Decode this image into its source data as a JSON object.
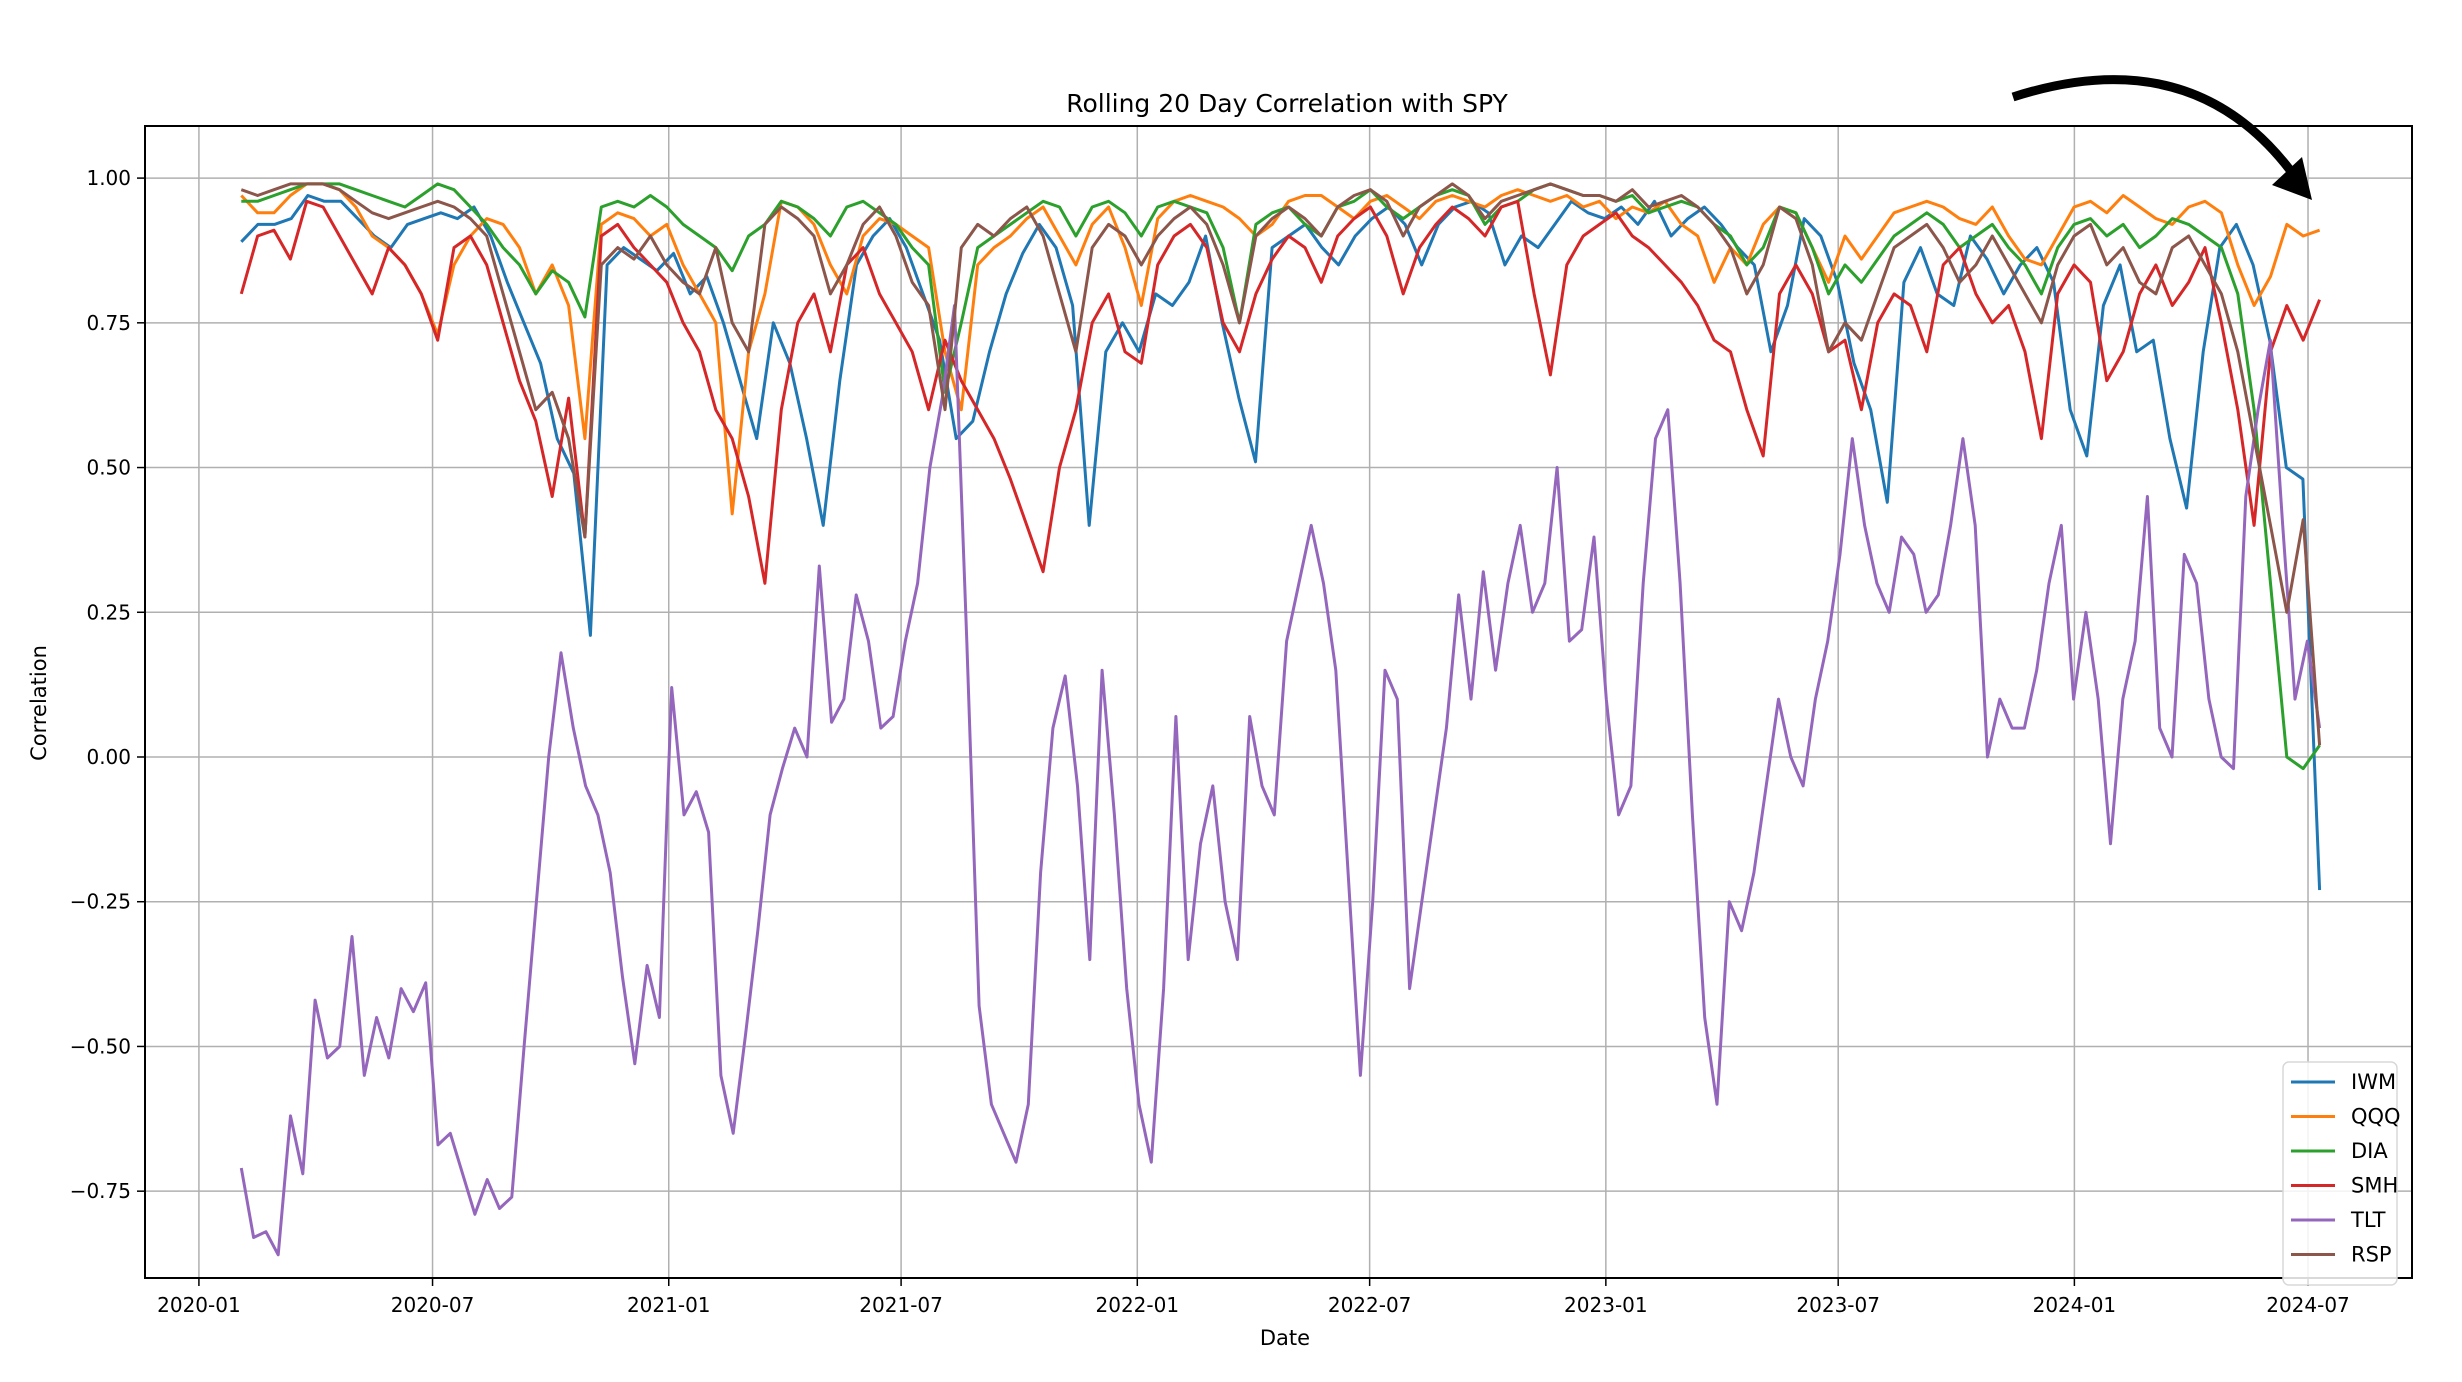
{
  "chart_data": {
    "type": "line",
    "title": "Rolling 20 Day Correlation with SPY",
    "xlabel": "Date",
    "ylabel": "Correlation",
    "xlim": [
      "2019-11-20",
      "2024-09-20"
    ],
    "ylim": [
      -0.9,
      1.09
    ],
    "grid": true,
    "legend_position": "lower-right",
    "x_ticks": [
      "2020-01",
      "2020-07",
      "2021-01",
      "2021-07",
      "2022-01",
      "2022-07",
      "2023-01",
      "2023-07",
      "2024-01",
      "2024-07"
    ],
    "y_ticks": [
      1.0,
      0.75,
      0.5,
      0.25,
      0.0,
      -0.25,
      -0.5,
      -0.75
    ],
    "y_tick_labels": [
      "1.00",
      "0.75",
      "0.50",
      "0.25",
      "0.00",
      "−0.25",
      "−0.50",
      "−0.75"
    ],
    "x_start": "2020-02-03",
    "x_end": "2024-07-10",
    "sampling": "uniform between x_start and x_end",
    "annotation": "curved arrow pointing to latest values",
    "series": [
      {
        "name": "IWM",
        "color": "#1f77b4",
        "values": [
          0.89,
          0.92,
          0.92,
          0.93,
          0.97,
          0.96,
          0.96,
          0.93,
          0.9,
          0.88,
          0.92,
          0.93,
          0.94,
          0.93,
          0.95,
          0.9,
          0.82,
          0.75,
          0.68,
          0.55,
          0.49,
          0.21,
          0.85,
          0.88,
          0.86,
          0.84,
          0.87,
          0.8,
          0.83,
          0.75,
          0.65,
          0.55,
          0.75,
          0.68,
          0.55,
          0.4,
          0.65,
          0.85,
          0.9,
          0.93,
          0.88,
          0.8,
          0.72,
          0.55,
          0.58,
          0.7,
          0.8,
          0.87,
          0.92,
          0.88,
          0.78,
          0.4,
          0.7,
          0.75,
          0.7,
          0.8,
          0.78,
          0.82,
          0.9,
          0.75,
          0.62,
          0.51,
          0.88,
          0.9,
          0.92,
          0.88,
          0.85,
          0.9,
          0.93,
          0.95,
          0.92,
          0.85,
          0.92,
          0.95,
          0.96,
          0.94,
          0.85,
          0.9,
          0.88,
          0.92,
          0.96,
          0.94,
          0.93,
          0.95,
          0.92,
          0.96,
          0.9,
          0.93,
          0.95,
          0.92,
          0.88,
          0.85,
          0.7,
          0.78,
          0.93,
          0.9,
          0.82,
          0.68,
          0.6,
          0.44,
          0.82,
          0.88,
          0.8,
          0.78,
          0.9,
          0.86,
          0.8,
          0.85,
          0.88,
          0.82,
          0.6,
          0.52,
          0.78,
          0.85,
          0.7,
          0.72,
          0.55,
          0.43,
          0.7,
          0.88,
          0.92,
          0.85,
          0.72,
          0.5,
          0.48,
          -0.23
        ]
      },
      {
        "name": "QQQ",
        "color": "#ff7f0e",
        "values": [
          0.97,
          0.94,
          0.94,
          0.97,
          0.99,
          0.99,
          0.98,
          0.95,
          0.9,
          0.88,
          0.85,
          0.8,
          0.73,
          0.85,
          0.9,
          0.93,
          0.92,
          0.88,
          0.8,
          0.85,
          0.78,
          0.55,
          0.92,
          0.94,
          0.93,
          0.9,
          0.92,
          0.85,
          0.8,
          0.75,
          0.42,
          0.7,
          0.8,
          0.96,
          0.95,
          0.92,
          0.85,
          0.8,
          0.9,
          0.93,
          0.92,
          0.9,
          0.88,
          0.7,
          0.6,
          0.85,
          0.88,
          0.9,
          0.93,
          0.95,
          0.9,
          0.85,
          0.92,
          0.95,
          0.88,
          0.78,
          0.93,
          0.96,
          0.97,
          0.96,
          0.95,
          0.93,
          0.9,
          0.92,
          0.96,
          0.97,
          0.97,
          0.95,
          0.93,
          0.96,
          0.97,
          0.95,
          0.93,
          0.96,
          0.97,
          0.96,
          0.95,
          0.97,
          0.98,
          0.97,
          0.96,
          0.97,
          0.95,
          0.96,
          0.93,
          0.95,
          0.94,
          0.96,
          0.92,
          0.9,
          0.82,
          0.88,
          0.85,
          0.92,
          0.95,
          0.94,
          0.88,
          0.82,
          0.9,
          0.86,
          0.9,
          0.94,
          0.95,
          0.96,
          0.95,
          0.93,
          0.92,
          0.95,
          0.9,
          0.86,
          0.85,
          0.9,
          0.95,
          0.96,
          0.94,
          0.97,
          0.95,
          0.93,
          0.92,
          0.95,
          0.96,
          0.94,
          0.85,
          0.78,
          0.83,
          0.92,
          0.9,
          0.91
        ]
      },
      {
        "name": "DIA",
        "color": "#2ca02c",
        "values": [
          0.96,
          0.96,
          0.97,
          0.98,
          0.99,
          0.99,
          0.99,
          0.98,
          0.97,
          0.96,
          0.95,
          0.97,
          0.99,
          0.98,
          0.95,
          0.92,
          0.88,
          0.85,
          0.8,
          0.84,
          0.82,
          0.76,
          0.95,
          0.96,
          0.95,
          0.97,
          0.95,
          0.92,
          0.9,
          0.88,
          0.84,
          0.9,
          0.92,
          0.96,
          0.95,
          0.93,
          0.9,
          0.95,
          0.96,
          0.94,
          0.92,
          0.88,
          0.85,
          0.63,
          0.75,
          0.88,
          0.9,
          0.92,
          0.94,
          0.96,
          0.95,
          0.9,
          0.95,
          0.96,
          0.94,
          0.9,
          0.95,
          0.96,
          0.95,
          0.94,
          0.88,
          0.75,
          0.92,
          0.94,
          0.95,
          0.92,
          0.9,
          0.95,
          0.96,
          0.98,
          0.95,
          0.93,
          0.95,
          0.97,
          0.98,
          0.97,
          0.92,
          0.95,
          0.96,
          0.98,
          0.99,
          0.98,
          0.97,
          0.97,
          0.96,
          0.97,
          0.94,
          0.95,
          0.96,
          0.95,
          0.92,
          0.9,
          0.85,
          0.88,
          0.95,
          0.94,
          0.88,
          0.8,
          0.85,
          0.82,
          0.86,
          0.9,
          0.92,
          0.94,
          0.92,
          0.88,
          0.9,
          0.92,
          0.88,
          0.85,
          0.8,
          0.88,
          0.92,
          0.93,
          0.9,
          0.92,
          0.88,
          0.9,
          0.93,
          0.92,
          0.9,
          0.88,
          0.8,
          0.6,
          0.3,
          0.0,
          -0.02,
          0.02
        ]
      },
      {
        "name": "SMH",
        "color": "#d62728",
        "values": [
          0.8,
          0.9,
          0.91,
          0.86,
          0.96,
          0.95,
          0.9,
          0.85,
          0.8,
          0.88,
          0.85,
          0.8,
          0.72,
          0.88,
          0.9,
          0.85,
          0.75,
          0.65,
          0.58,
          0.45,
          0.62,
          0.38,
          0.9,
          0.92,
          0.88,
          0.85,
          0.82,
          0.75,
          0.7,
          0.6,
          0.55,
          0.45,
          0.3,
          0.6,
          0.75,
          0.8,
          0.7,
          0.85,
          0.88,
          0.8,
          0.75,
          0.7,
          0.6,
          0.72,
          0.65,
          0.6,
          0.55,
          0.48,
          0.4,
          0.32,
          0.5,
          0.6,
          0.75,
          0.8,
          0.7,
          0.68,
          0.85,
          0.9,
          0.92,
          0.88,
          0.75,
          0.7,
          0.8,
          0.86,
          0.9,
          0.88,
          0.82,
          0.9,
          0.93,
          0.95,
          0.9,
          0.8,
          0.88,
          0.92,
          0.95,
          0.93,
          0.9,
          0.95,
          0.96,
          0.8,
          0.66,
          0.85,
          0.9,
          0.92,
          0.94,
          0.9,
          0.88,
          0.85,
          0.82,
          0.78,
          0.72,
          0.7,
          0.6,
          0.52,
          0.8,
          0.85,
          0.8,
          0.7,
          0.72,
          0.6,
          0.75,
          0.8,
          0.78,
          0.7,
          0.85,
          0.88,
          0.8,
          0.75,
          0.78,
          0.7,
          0.55,
          0.8,
          0.85,
          0.82,
          0.65,
          0.7,
          0.8,
          0.85,
          0.78,
          0.82,
          0.88,
          0.75,
          0.6,
          0.4,
          0.7,
          0.78,
          0.72,
          0.79
        ]
      },
      {
        "name": "TLT",
        "color": "#9467bd",
        "values": [
          -0.71,
          -0.83,
          -0.82,
          -0.86,
          -0.62,
          -0.72,
          -0.42,
          -0.52,
          -0.5,
          -0.31,
          -0.55,
          -0.45,
          -0.52,
          -0.4,
          -0.44,
          -0.39,
          -0.67,
          -0.65,
          -0.72,
          -0.79,
          -0.73,
          -0.78,
          -0.76,
          -0.5,
          -0.25,
          0.0,
          0.18,
          0.05,
          -0.05,
          -0.1,
          -0.2,
          -0.38,
          -0.53,
          -0.36,
          -0.45,
          0.12,
          -0.1,
          -0.06,
          -0.13,
          -0.55,
          -0.65,
          -0.48,
          -0.3,
          -0.1,
          -0.02,
          0.05,
          0.0,
          0.33,
          0.06,
          0.1,
          0.28,
          0.2,
          0.05,
          0.07,
          0.2,
          0.3,
          0.5,
          0.62,
          0.78,
          0.2,
          -0.43,
          -0.6,
          -0.65,
          -0.7,
          -0.6,
          -0.2,
          0.05,
          0.14,
          -0.05,
          -0.35,
          0.15,
          -0.1,
          -0.4,
          -0.6,
          -0.7,
          -0.4,
          0.07,
          -0.35,
          -0.15,
          -0.05,
          -0.25,
          -0.35,
          0.07,
          -0.05,
          -0.1,
          0.2,
          0.3,
          0.4,
          0.3,
          0.15,
          -0.2,
          -0.55,
          -0.25,
          0.15,
          0.1,
          -0.4,
          -0.25,
          -0.1,
          0.05,
          0.28,
          0.1,
          0.32,
          0.15,
          0.3,
          0.4,
          0.25,
          0.3,
          0.5,
          0.2,
          0.22,
          0.38,
          0.1,
          -0.1,
          -0.05,
          0.3,
          0.55,
          0.6,
          0.3,
          -0.1,
          -0.45,
          -0.6,
          -0.25,
          -0.3,
          -0.2,
          -0.05,
          0.1,
          0.0,
          -0.05,
          0.1,
          0.2,
          0.35,
          0.55,
          0.4,
          0.3,
          0.25,
          0.38,
          0.35,
          0.25,
          0.28,
          0.4,
          0.55,
          0.4,
          0.0,
          0.1,
          0.05,
          0.05,
          0.15,
          0.3,
          0.4,
          0.1,
          0.25,
          0.1,
          -0.15,
          0.1,
          0.2,
          0.45,
          0.05,
          0.0,
          0.35,
          0.3,
          0.1,
          0.0,
          -0.02,
          0.45,
          0.6,
          0.72,
          0.4,
          0.1,
          0.2,
          0.05
        ]
      },
      {
        "name": "RSP",
        "color": "#8c564b",
        "values": [
          0.98,
          0.97,
          0.98,
          0.99,
          0.99,
          0.99,
          0.98,
          0.96,
          0.94,
          0.93,
          0.94,
          0.95,
          0.96,
          0.95,
          0.93,
          0.9,
          0.8,
          0.7,
          0.6,
          0.63,
          0.55,
          0.38,
          0.85,
          0.88,
          0.86,
          0.9,
          0.85,
          0.82,
          0.8,
          0.88,
          0.75,
          0.7,
          0.92,
          0.95,
          0.93,
          0.9,
          0.8,
          0.85,
          0.92,
          0.95,
          0.9,
          0.82,
          0.78,
          0.6,
          0.88,
          0.92,
          0.9,
          0.93,
          0.95,
          0.9,
          0.8,
          0.7,
          0.88,
          0.92,
          0.9,
          0.85,
          0.9,
          0.93,
          0.95,
          0.92,
          0.85,
          0.75,
          0.9,
          0.93,
          0.95,
          0.93,
          0.9,
          0.95,
          0.97,
          0.98,
          0.96,
          0.9,
          0.95,
          0.97,
          0.99,
          0.97,
          0.93,
          0.96,
          0.97,
          0.98,
          0.99,
          0.98,
          0.97,
          0.97,
          0.96,
          0.98,
          0.95,
          0.96,
          0.97,
          0.95,
          0.92,
          0.88,
          0.8,
          0.85,
          0.95,
          0.93,
          0.85,
          0.7,
          0.75,
          0.72,
          0.8,
          0.88,
          0.9,
          0.92,
          0.88,
          0.82,
          0.85,
          0.9,
          0.85,
          0.8,
          0.75,
          0.85,
          0.9,
          0.92,
          0.85,
          0.88,
          0.82,
          0.8,
          0.88,
          0.9,
          0.85,
          0.8,
          0.7,
          0.55,
          0.4,
          0.25,
          0.41,
          0.02
        ]
      }
    ]
  }
}
